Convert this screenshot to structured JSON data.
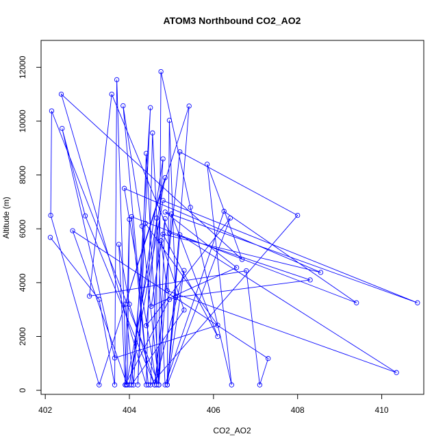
{
  "chart_data": {
    "type": "line",
    "title": "ATOM3 Northbound CO2_AO2",
    "xlabel": "CO2_AO2",
    "ylabel": "Altitude (m)",
    "xlim": [
      401.9,
      411.0
    ],
    "ylim": [
      -150,
      13000
    ],
    "xticks": [
      402,
      404,
      406,
      408,
      410
    ],
    "yticks": [
      0,
      2000,
      4000,
      6000,
      8000,
      10000,
      12000
    ],
    "grid": false,
    "legend": "none",
    "markers": "open-circle",
    "series": [
      {
        "color": "#0000ff",
        "points": [
          [
            402.12,
            5680
          ],
          [
            403.28,
            3380
          ],
          [
            403.65,
            200
          ],
          [
            403.7,
            11540
          ],
          [
            403.93,
            200
          ],
          [
            404.85,
            7900
          ],
          [
            403.9,
            3200
          ],
          [
            404.1,
            200
          ],
          [
            404.5,
            10500
          ],
          [
            404.2,
            200
          ],
          [
            404.4,
            8800
          ],
          [
            404.7,
            200
          ],
          [
            404.75,
            11840
          ],
          [
            405.45,
            6800
          ],
          [
            406.43,
            200
          ],
          [
            405.85,
            8400
          ],
          [
            406.68,
            4860
          ],
          [
            402.38,
            11000
          ],
          [
            404.4,
            200
          ],
          [
            404.55,
            9560
          ],
          [
            404.85,
            200
          ],
          [
            406.25,
            6650
          ],
          [
            409.4,
            3250
          ],
          [
            404.05,
            6450
          ],
          [
            404.45,
            200
          ],
          [
            403.85,
            10570
          ],
          [
            404.3,
            6100
          ],
          [
            404.7,
            200
          ],
          [
            402.15,
            10380
          ],
          [
            402.13,
            6500
          ],
          [
            403.28,
            200
          ],
          [
            405.42,
            10560
          ],
          [
            404.9,
            200
          ],
          [
            404.95,
            10030
          ],
          [
            405.1,
            3450
          ],
          [
            408.3,
            4100
          ],
          [
            404.95,
            5850
          ],
          [
            403.58,
            11000
          ],
          [
            403.05,
            3500
          ],
          [
            406.78,
            4440
          ],
          [
            407.1,
            200
          ],
          [
            407.3,
            1180
          ],
          [
            402.65,
            5930
          ],
          [
            403.95,
            200
          ],
          [
            404.0,
            6350
          ],
          [
            403.9,
            200
          ],
          [
            403.75,
            5420
          ],
          [
            404.0,
            3200
          ],
          [
            404.6,
            200
          ],
          [
            405.2,
            8860
          ],
          [
            408.0,
            6500
          ],
          [
            404.5,
            200
          ],
          [
            404.8,
            8600
          ],
          [
            404.0,
            200
          ],
          [
            404.8,
            7050
          ],
          [
            410.85,
            3250
          ],
          [
            404.85,
            6620
          ],
          [
            406.55,
            4560
          ],
          [
            404.52,
            3120
          ],
          [
            404.85,
            6380
          ],
          [
            404.7,
            200
          ],
          [
            405.0,
            6550
          ],
          [
            406.1,
            2000
          ],
          [
            404.8,
            5800
          ],
          [
            408.55,
            4380
          ],
          [
            403.88,
            7500
          ],
          [
            404.65,
            200
          ],
          [
            404.65,
            6400
          ],
          [
            404.4,
            2400
          ],
          [
            406.4,
            6400
          ],
          [
            404.9,
            200
          ],
          [
            405.2,
            5780
          ],
          [
            410.35,
            660
          ],
          [
            404.9,
            3700
          ],
          [
            404.75,
            5560
          ],
          [
            405.3,
            2980
          ],
          [
            404.05,
            200
          ],
          [
            404.38,
            6200
          ],
          [
            406.1,
            2420
          ],
          [
            403.65,
            1200
          ],
          [
            402.4,
            9730
          ],
          [
            402.95,
            6480
          ],
          [
            404.6,
            200
          ],
          [
            405.3,
            4450
          ],
          [
            404.9,
            200
          ],
          [
            405.1,
            3460
          ],
          [
            404.95,
            3370
          ],
          [
            403.9,
            200
          ]
        ]
      }
    ]
  }
}
